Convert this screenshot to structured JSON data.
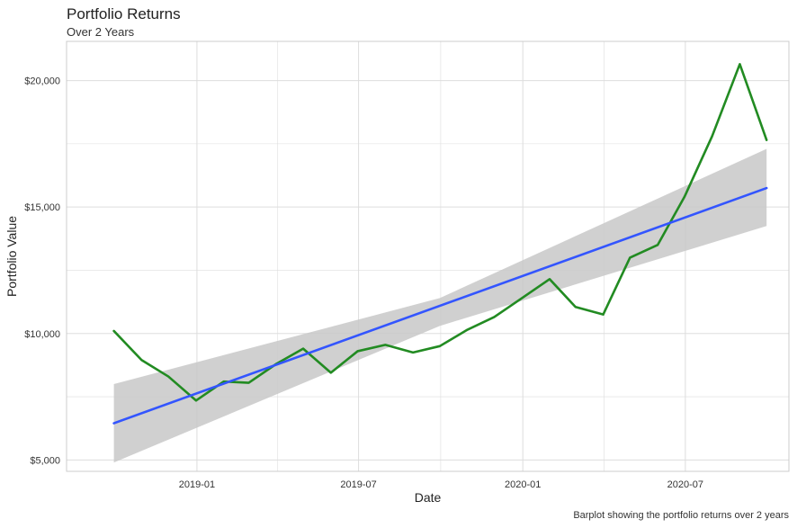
{
  "chart_data": {
    "type": "line",
    "title": "Portfolio Returns",
    "subtitle": "Over 2 Years",
    "caption": "Barplot showing the portfolio returns over 2 years",
    "xlabel": "Date",
    "ylabel": "Portfolio Value",
    "x_ticks": [
      {
        "date": "2019-01-01",
        "label": "2019-01"
      },
      {
        "date": "2019-07-01",
        "label": "2019-07"
      },
      {
        "date": "2020-01-01",
        "label": "2020-01"
      },
      {
        "date": "2020-07-01",
        "label": "2020-07"
      }
    ],
    "y_ticks": [
      {
        "value": 5000,
        "label": "$5,000"
      },
      {
        "value": 10000,
        "label": "$10,000"
      },
      {
        "value": 15000,
        "label": "$15,000"
      },
      {
        "value": 20000,
        "label": "$20,000"
      }
    ],
    "xlim": [
      "2018-08-08",
      "2020-10-25"
    ],
    "ylim": [
      4550,
      21550
    ],
    "grid": true,
    "colors": {
      "line": "#228B22",
      "trend": "#3355FF",
      "band": "#C8C8C8",
      "grid": "#DDDDDD",
      "frame": "#CCCCCC"
    },
    "series": [
      {
        "x": [
          "2018-09-30",
          "2018-10-31",
          "2018-11-30",
          "2018-12-31",
          "2019-01-31",
          "2019-02-28",
          "2019-03-31",
          "2019-04-30",
          "2019-05-31",
          "2019-06-30",
          "2019-07-31",
          "2019-08-31",
          "2019-09-30",
          "2019-10-31",
          "2019-11-30",
          "2019-12-31",
          "2020-01-31",
          "2020-02-29",
          "2020-03-31",
          "2020-04-30",
          "2020-05-31",
          "2020-06-30",
          "2020-07-31",
          "2020-08-31",
          "2020-09-30"
        ],
        "values": [
          10100,
          8950,
          8300,
          7350,
          8100,
          8050,
          8800,
          9400,
          8450,
          9300,
          9550,
          9250,
          9500,
          10150,
          10650,
          11400,
          12150,
          11050,
          10750,
          13000,
          13500,
          15400,
          17800,
          20650,
          17650
        ]
      }
    ],
    "trend": {
      "x": [
        "2018-09-30",
        "2020-09-30"
      ],
      "values": [
        6450,
        15750
      ]
    },
    "confidence_band": {
      "x": [
        "2018-09-30",
        "2019-09-30",
        "2020-09-30"
      ],
      "upper": [
        8000,
        11400,
        17300
      ],
      "lower": [
        4900,
        10300,
        14250
      ]
    }
  }
}
